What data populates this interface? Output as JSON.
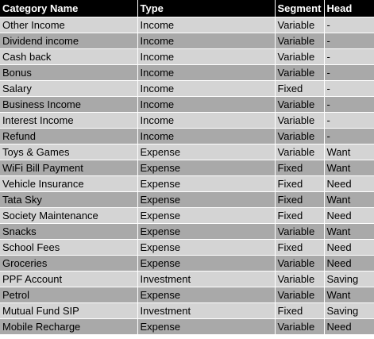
{
  "table": {
    "headers": [
      "Category Name",
      "Type",
      "Segment",
      "Head"
    ],
    "rows": [
      [
        "Other Income",
        "Income",
        "Variable",
        "-"
      ],
      [
        "Dividend income",
        "Income",
        "Variable",
        "-"
      ],
      [
        "Cash back",
        "Income",
        "Variable",
        "-"
      ],
      [
        "Bonus",
        "Income",
        "Variable",
        "-"
      ],
      [
        "Salary",
        "Income",
        "Fixed",
        "-"
      ],
      [
        "Business Income",
        "Income",
        "Variable",
        "-"
      ],
      [
        "Interest Income",
        "Income",
        "Variable",
        "-"
      ],
      [
        "Refund",
        "Income",
        "Variable",
        "-"
      ],
      [
        "Toys & Games",
        "Expense",
        "Variable",
        "Want"
      ],
      [
        "WiFi Bill Payment",
        "Expense",
        "Fixed",
        "Want"
      ],
      [
        "Vehicle Insurance",
        "Expense",
        "Fixed",
        "Need"
      ],
      [
        "Tata Sky",
        "Expense",
        "Fixed",
        "Want"
      ],
      [
        "Society Maintenance",
        "Expense",
        "Fixed",
        "Need"
      ],
      [
        "Snacks",
        "Expense",
        "Variable",
        "Want"
      ],
      [
        "School Fees",
        "Expense",
        "Fixed",
        "Need"
      ],
      [
        "Groceries",
        "Expense",
        "Variable",
        "Need"
      ],
      [
        "PPF Account",
        "Investment",
        "Variable",
        "Saving"
      ],
      [
        "Petrol",
        "Expense",
        "Variable",
        "Want"
      ],
      [
        "Mutual Fund SIP",
        "Investment",
        "Fixed",
        "Saving"
      ],
      [
        "Mobile Recharge",
        "Expense",
        "Variable",
        "Need"
      ]
    ]
  },
  "colors": {
    "header_bg": "#000000",
    "header_text": "#ffffff",
    "row_light": "#d4d4d4",
    "row_dark": "#a9a9a9"
  }
}
